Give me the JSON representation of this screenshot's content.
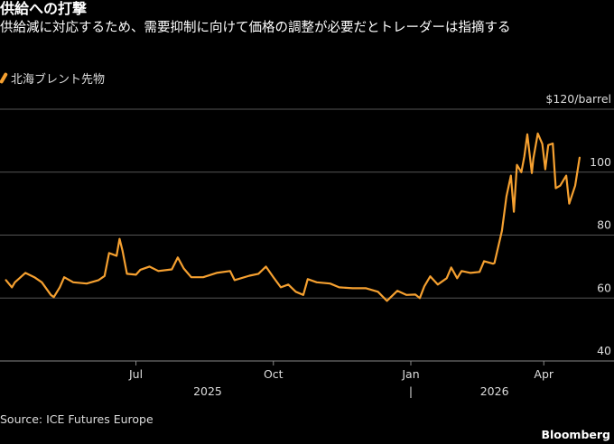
{
  "title": "供給への打撃",
  "subtitle": "供給減に対応するため、需要抑制に向けて価格の調整が必要だとトレーダーは指摘する",
  "source": "Source: ICE Futures Europe",
  "brand": "Bloomberg",
  "colors": {
    "line": "#f5a030",
    "grid": "#555555",
    "background": "#000000"
  },
  "chart_data": {
    "type": "line",
    "title": "供給への打撃",
    "x_unit": "days since 2025-07-01",
    "xlim": [
      -91,
      320
    ],
    "ylim": [
      40,
      120
    ],
    "y_unit_label": "$120/barrel",
    "y_ticks": [
      {
        "value": 120,
        "label": "$120/barrel"
      },
      {
        "value": 100,
        "label": "100"
      },
      {
        "value": 80,
        "label": "80"
      },
      {
        "value": 60,
        "label": "60"
      },
      {
        "value": 40,
        "label": "40"
      }
    ],
    "x_ticks": [
      {
        "value": 0,
        "label": "Jul"
      },
      {
        "value": 92,
        "label": "Oct"
      },
      {
        "value": 184,
        "label": "Jan"
      },
      {
        "value": 273,
        "label": "Apr"
      }
    ],
    "year_labels": [
      {
        "value": 48,
        "label": "2025"
      },
      {
        "value": 240,
        "label": "2026"
      }
    ],
    "year_separator": {
      "value": 184,
      "label": "|"
    },
    "grid": true,
    "legend_position": "top-left",
    "series": [
      {
        "name": "北海ブレント先物",
        "x": [
          -87,
          -83,
          -81,
          -74,
          -68,
          -63,
          -57,
          -55,
          -51,
          -48,
          -42,
          -33,
          -25,
          -21,
          -18,
          -13,
          -11,
          -9,
          -6,
          0,
          3,
          9,
          15,
          24,
          28,
          32,
          37,
          45,
          54,
          63,
          66,
          76,
          82,
          87,
          92,
          97,
          102,
          107,
          112,
          115,
          121,
          130,
          136,
          145,
          154,
          162,
          168,
          175,
          181,
          187,
          190,
          193,
          197,
          202,
          208,
          211,
          215,
          218,
          224,
          230,
          233,
          239,
          240,
          244,
          245,
          248,
          251,
          253,
          255,
          258,
          260,
          262,
          265,
          266,
          269,
          272,
          274,
          276,
          279,
          281,
          284,
          288,
          290,
          294,
          297
        ],
        "values": [
          65.7,
          63.4,
          65,
          68,
          66.6,
          65,
          61,
          60.3,
          63.4,
          66.6,
          65,
          64.6,
          65.7,
          67,
          74.3,
          73.4,
          78.8,
          75,
          67.7,
          67.4,
          69,
          70,
          68.6,
          69.1,
          72.9,
          69.4,
          66.6,
          66.6,
          68,
          68.6,
          65.7,
          67.1,
          67.7,
          70,
          66.6,
          63.4,
          64.3,
          62,
          61,
          66,
          65,
          64.6,
          63.4,
          63.1,
          63.1,
          62,
          59.1,
          62.3,
          61,
          61.1,
          60,
          63.7,
          66.9,
          64.3,
          66.3,
          69.7,
          66.3,
          68.6,
          68,
          68.3,
          71.7,
          70.9,
          71.1,
          79.4,
          81.4,
          92.3,
          98.9,
          87.4,
          102.3,
          100,
          105,
          112,
          99.7,
          104.3,
          112.3,
          109,
          100.9,
          108.6,
          109.1,
          94.9,
          95.7,
          98.9,
          90,
          95.7,
          104.6
        ]
      }
    ]
  }
}
